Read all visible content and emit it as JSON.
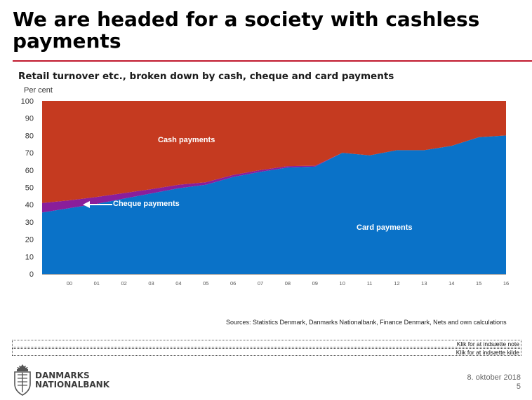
{
  "slide": {
    "title": "We are headed for a society with cashless payments",
    "sources": "Sources: Statistics Denmark, Danmarks Nationalbank, Finance Denmark, Nets and own calculations",
    "note_placeholder": "Klik for at indsætte note",
    "source_placeholder": "Klik for at indsætte kilde",
    "date": "8. oktober 2018",
    "page_number": "5",
    "logo_text_line1": "DANMARKS",
    "logo_text_line2": "NATIONALBANK",
    "logo_icon": "crest-icon"
  },
  "chart_data": {
    "type": "area",
    "title": "Retail turnover etc., broken down by cash, cheque and card payments",
    "ylabel": "Per cent",
    "ylim": [
      0,
      100
    ],
    "yticks": [
      0,
      10,
      20,
      30,
      40,
      50,
      60,
      70,
      80,
      90,
      100
    ],
    "x": [
      1999,
      2000,
      2001,
      2002,
      2003,
      2004,
      2005,
      2006,
      2007,
      2008,
      2009,
      2010,
      2011,
      2012,
      2013,
      2014,
      2015,
      2016
    ],
    "xtick_labels": [
      "00",
      "01",
      "02",
      "03",
      "04",
      "05",
      "06",
      "07",
      "08",
      "09",
      "10",
      "11",
      "12",
      "13",
      "14",
      "15",
      "16"
    ],
    "stacked": true,
    "series": [
      {
        "name": "Card payments",
        "color": "#0a72c8",
        "values": [
          35.5,
          38,
          40.5,
          43.5,
          46.5,
          49.5,
          51.5,
          56,
          59,
          61.5,
          62,
          70,
          68.5,
          71.5,
          71.5,
          74,
          79,
          80
        ]
      },
      {
        "name": "Cheque payments",
        "color": "#8a1e9b",
        "values": [
          5.5,
          4.5,
          4,
          3.2,
          2.5,
          2,
          1.5,
          1.2,
          1,
          0.8,
          0.5,
          0,
          0,
          0,
          0,
          0,
          0,
          0
        ]
      },
      {
        "name": "Cash payments",
        "color": "#c53a20",
        "values": [
          59,
          57.5,
          55.5,
          53.3,
          51,
          48.5,
          47,
          42.8,
          40,
          37.7,
          37.5,
          30,
          31.5,
          28.5,
          28.5,
          26,
          21,
          20
        ]
      }
    ],
    "annotations": {
      "cash": "Cash payments",
      "cheque": "Cheque payments",
      "card": "Card payments"
    },
    "grid": false
  }
}
